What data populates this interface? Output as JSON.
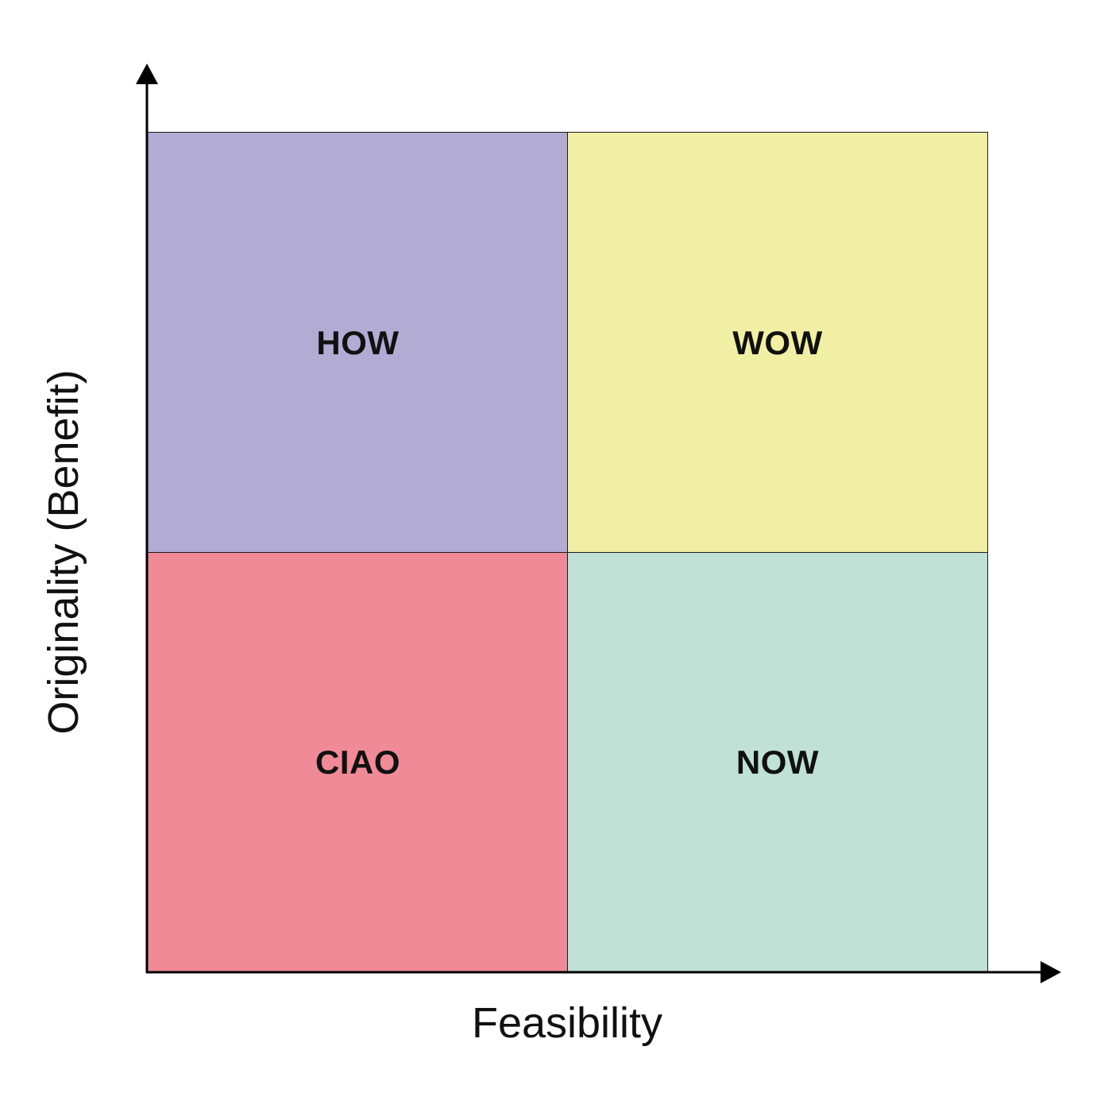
{
  "diagram": {
    "x_axis_label": "Feasibility",
    "y_axis_label": "Originality (Benefit)",
    "quadrants": {
      "top_left": {
        "label": "HOW",
        "color": "#b2abd4"
      },
      "top_right": {
        "label": "WOW",
        "color": "#f1efa3"
      },
      "bottom_left": {
        "label": "CIAO",
        "color": "#f18a97"
      },
      "bottom_right": {
        "label": "NOW",
        "color": "#c0e1d6"
      }
    },
    "axis_color": "#000000"
  }
}
